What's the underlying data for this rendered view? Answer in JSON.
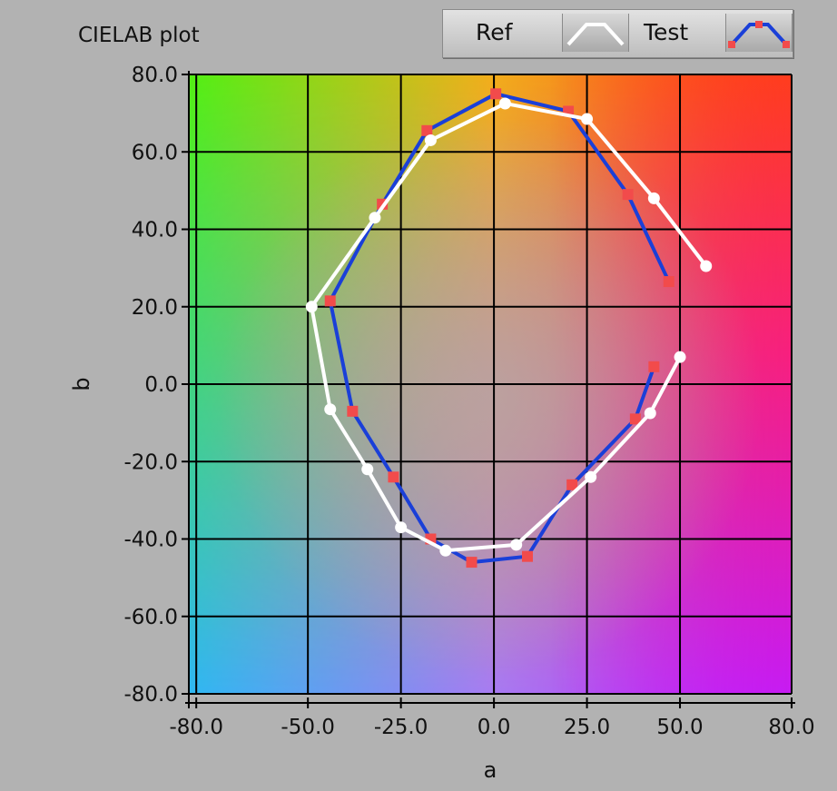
{
  "chart_data": {
    "type": "line",
    "title": "CIELAB plot",
    "xlabel": "a",
    "ylabel": "b",
    "xlim": [
      -82,
      80
    ],
    "ylim": [
      -80,
      80
    ],
    "x_tick_labels": [
      "-80.0",
      "-50.0",
      "-25.0",
      "0.0",
      "25.0",
      "50.0",
      "80.0"
    ],
    "y_tick_labels": [
      "80.0",
      "60.0",
      "40.0",
      "20.0",
      "0.0",
      "-20.0",
      "-40.0",
      "-60.0",
      "-80.0"
    ],
    "grid": true,
    "legend_position": "top-right",
    "background": "CIELAB color gradient (green top-left, orange/red top-right, cyan bottom-left, violet bottom-right)",
    "series": [
      {
        "name": "Ref",
        "color": "#ffffff",
        "marker": "circle",
        "points": [
          [
            57,
            30.5
          ],
          [
            43,
            48
          ],
          [
            25,
            68.5
          ],
          [
            3,
            72.5
          ],
          [
            -17,
            63
          ],
          [
            -32,
            43
          ],
          [
            -49,
            20
          ],
          [
            -44,
            -6.5
          ],
          [
            -34,
            -22
          ],
          [
            -25,
            -37
          ],
          [
            -13,
            -43
          ],
          [
            6,
            -41.5
          ],
          [
            26,
            -24
          ],
          [
            42,
            -7.5
          ],
          [
            50,
            7
          ]
        ]
      },
      {
        "name": "Test",
        "color": "#1a3fd8",
        "marker_color": "#f24b4b",
        "marker": "square",
        "points": [
          [
            47,
            26.5
          ],
          [
            36,
            49
          ],
          [
            20,
            70.5
          ],
          [
            0.5,
            75
          ],
          [
            -18,
            65.5
          ],
          [
            -30,
            46.5
          ],
          [
            -44,
            21.5
          ],
          [
            -38,
            -7
          ],
          [
            -27,
            -24
          ],
          [
            -17,
            -40
          ],
          [
            -6,
            -46
          ],
          [
            9,
            -44.5
          ],
          [
            21,
            -26
          ],
          [
            38,
            -9
          ],
          [
            43,
            4.5
          ]
        ]
      }
    ]
  }
}
